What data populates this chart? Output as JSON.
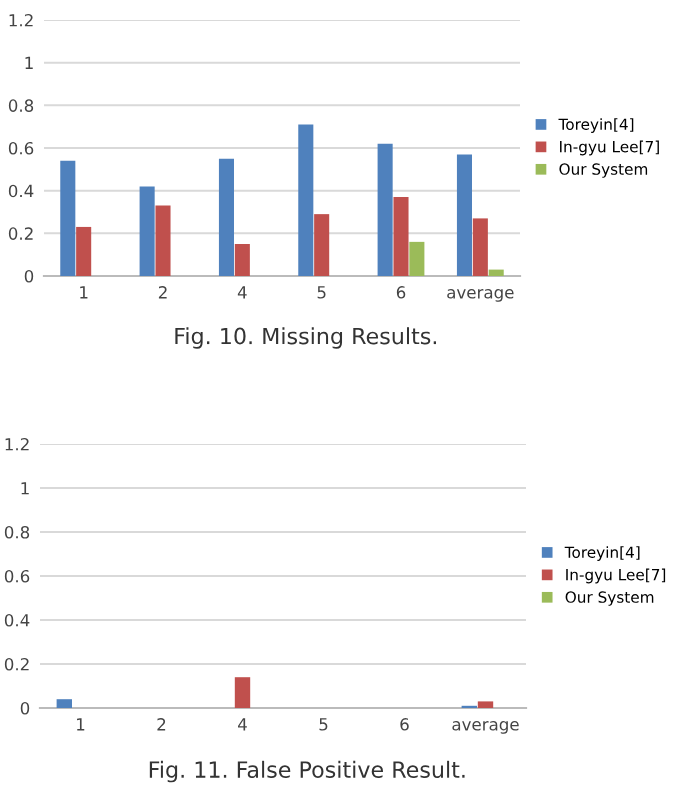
{
  "chart_data": [
    {
      "type": "bar",
      "title": "Fig. 10. Missing Results.",
      "categories": [
        "1",
        "2",
        "4",
        "5",
        "6",
        "average"
      ],
      "series": [
        {
          "name": "Toreyin[4]",
          "color": "#4f81bd",
          "values": [
            0.54,
            0.42,
            0.55,
            0.71,
            0.62,
            0.57
          ]
        },
        {
          "name": "In-gyu Lee[7]",
          "color": "#c0504d",
          "values": [
            0.23,
            0.33,
            0.15,
            0.29,
            0.37,
            0.27
          ]
        },
        {
          "name": "Our System",
          "color": "#9bbb59",
          "values": [
            0,
            0,
            0,
            0,
            0.16,
            0.03
          ]
        }
      ],
      "ylim": [
        0,
        1.2
      ],
      "yticks": [
        0,
        0.2,
        0.4,
        0.6,
        0.8,
        1,
        1.2
      ],
      "grid": "y",
      "legend": "right"
    },
    {
      "type": "bar",
      "title": "Fig. 11. False Positive Result.",
      "categories": [
        "1",
        "2",
        "4",
        "5",
        "6",
        "average"
      ],
      "series": [
        {
          "name": "Toreyin[4]",
          "color": "#4f81bd",
          "values": [
            0.04,
            0,
            0,
            0,
            0,
            0.01
          ]
        },
        {
          "name": "In-gyu Lee[7]",
          "color": "#c0504d",
          "values": [
            0,
            0,
            0.14,
            0,
            0,
            0.03
          ]
        },
        {
          "name": "Our System",
          "color": "#9bbb59",
          "values": [
            0,
            0,
            0,
            0,
            0,
            0
          ]
        }
      ],
      "ylim": [
        0,
        1.2
      ],
      "yticks": [
        0,
        0.2,
        0.4,
        0.6,
        0.8,
        1,
        1.2
      ],
      "grid": "y",
      "legend": "right"
    }
  ]
}
